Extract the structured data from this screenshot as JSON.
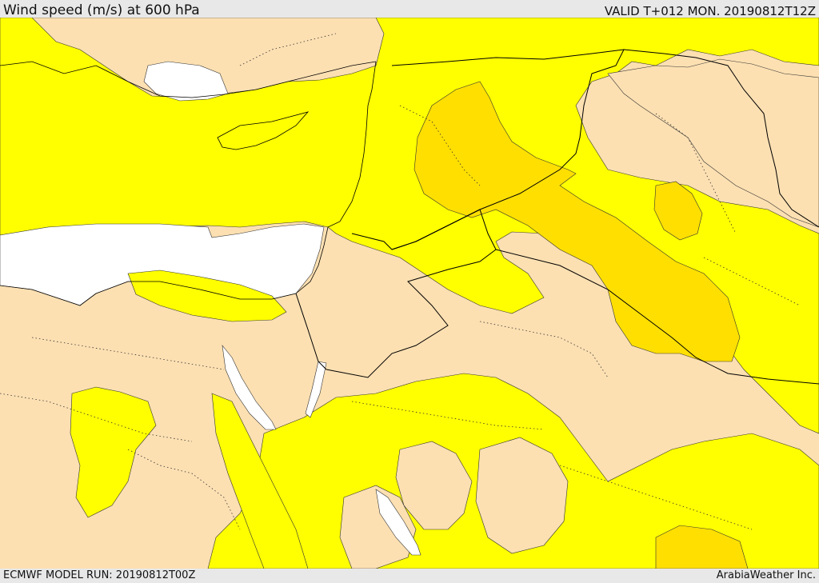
{
  "header": {
    "title": "Wind speed (m/s) at 600 hPa",
    "valid": "VALID T+012 MON. 20190812T12Z"
  },
  "footer": {
    "model_run": "ECMWF MODEL RUN: 20190812T00Z",
    "provider": "ArabiaWeather Inc."
  },
  "colors": {
    "calm_white": "#ffffff",
    "low_tan": "#fde0b2",
    "mid_yellow": "#ffff00",
    "high_gold": "#ffdf00",
    "border_line": "#000000"
  }
}
